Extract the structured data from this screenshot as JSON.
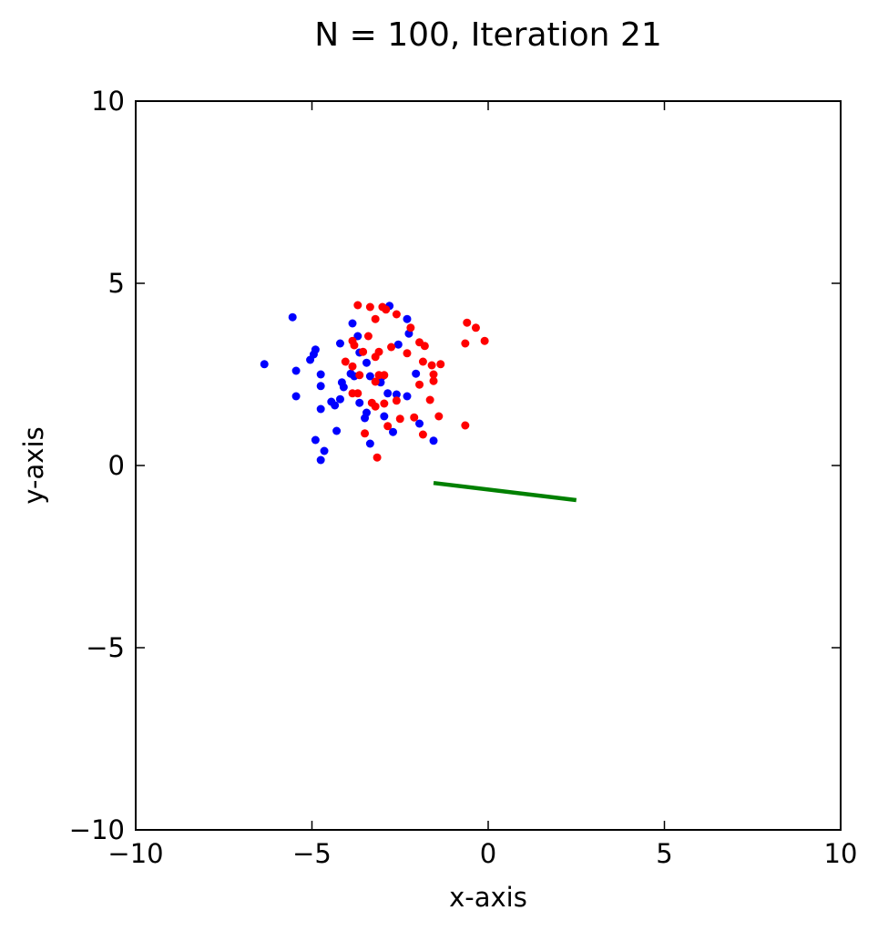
{
  "chart_data": {
    "type": "scatter",
    "title": "N = 100, Iteration 21",
    "xlabel": "x-axis",
    "ylabel": "y-axis",
    "xlim": [
      -10,
      10
    ],
    "ylim": [
      -10,
      10
    ],
    "xticks": [
      -10,
      -5,
      0,
      5,
      10
    ],
    "yticks": [
      -10,
      -5,
      0,
      5,
      10
    ],
    "xtick_labels": [
      "−10",
      "−5",
      "0",
      "5",
      "10"
    ],
    "ytick_labels": [
      "−10",
      "−5",
      "0",
      "5",
      "10"
    ],
    "grid": false,
    "series": [
      {
        "color": "#0000ff",
        "points": [
          [
            -5.55,
            4.07
          ],
          [
            -6.35,
            2.78
          ],
          [
            -5.45,
            2.6
          ],
          [
            -5.45,
            1.9
          ],
          [
            -5.05,
            2.9
          ],
          [
            -4.95,
            3.05
          ],
          [
            -4.9,
            3.18
          ],
          [
            -4.75,
            2.5
          ],
          [
            -4.75,
            2.18
          ],
          [
            -4.75,
            1.55
          ],
          [
            -4.9,
            0.7
          ],
          [
            -4.65,
            0.4
          ],
          [
            -4.75,
            0.15
          ],
          [
            -4.45,
            1.75
          ],
          [
            -4.35,
            1.65
          ],
          [
            -4.3,
            0.95
          ],
          [
            -4.2,
            1.82
          ],
          [
            -4.15,
            2.28
          ],
          [
            -4.1,
            2.15
          ],
          [
            -4.2,
            3.35
          ],
          [
            -3.9,
            2.52
          ],
          [
            -3.8,
            2.45
          ],
          [
            -3.85,
            3.9
          ],
          [
            -3.7,
            3.55
          ],
          [
            -3.65,
            3.1
          ],
          [
            -3.65,
            1.72
          ],
          [
            -3.5,
            1.3
          ],
          [
            -3.45,
            1.45
          ],
          [
            -3.45,
            2.82
          ],
          [
            -3.35,
            2.45
          ],
          [
            -3.35,
            0.6
          ],
          [
            -3.05,
            2.28
          ],
          [
            -3.0,
            2.45
          ],
          [
            -2.95,
            1.35
          ],
          [
            -2.85,
            1.98
          ],
          [
            -2.8,
            4.38
          ],
          [
            -2.7,
            0.92
          ],
          [
            -2.6,
            1.95
          ],
          [
            -2.55,
            3.32
          ],
          [
            -2.3,
            1.9
          ],
          [
            -2.3,
            4.02
          ],
          [
            -2.25,
            3.62
          ],
          [
            -2.05,
            2.52
          ],
          [
            -1.95,
            1.15
          ],
          [
            -1.55,
            0.68
          ]
        ]
      },
      {
        "color": "#ff0000",
        "points": [
          [
            -3.7,
            4.4
          ],
          [
            -3.35,
            4.35
          ],
          [
            -3.2,
            4.02
          ],
          [
            -3.0,
            4.35
          ],
          [
            -2.9,
            4.28
          ],
          [
            -2.6,
            4.15
          ],
          [
            -2.2,
            3.78
          ],
          [
            -3.85,
            3.42
          ],
          [
            -3.8,
            3.3
          ],
          [
            -3.55,
            3.12
          ],
          [
            -3.4,
            3.55
          ],
          [
            -3.2,
            2.98
          ],
          [
            -3.1,
            3.12
          ],
          [
            -2.75,
            3.25
          ],
          [
            -2.3,
            3.08
          ],
          [
            -1.95,
            3.38
          ],
          [
            -1.8,
            3.28
          ],
          [
            -4.05,
            2.85
          ],
          [
            -3.85,
            2.72
          ],
          [
            -3.65,
            2.48
          ],
          [
            -3.2,
            2.3
          ],
          [
            -3.1,
            2.48
          ],
          [
            -2.95,
            2.48
          ],
          [
            -1.85,
            2.85
          ],
          [
            -1.6,
            2.75
          ],
          [
            -1.55,
            2.5
          ],
          [
            -1.55,
            2.32
          ],
          [
            -1.35,
            2.78
          ],
          [
            -1.95,
            2.22
          ],
          [
            -3.85,
            1.98
          ],
          [
            -3.7,
            1.98
          ],
          [
            -3.3,
            1.72
          ],
          [
            -3.2,
            1.62
          ],
          [
            -2.95,
            1.7
          ],
          [
            -2.6,
            1.78
          ],
          [
            -1.65,
            1.8
          ],
          [
            -2.1,
            1.32
          ],
          [
            -2.5,
            1.28
          ],
          [
            -2.85,
            1.08
          ],
          [
            -3.5,
            0.88
          ],
          [
            -3.15,
            0.22
          ],
          [
            -1.85,
            0.85
          ],
          [
            -1.4,
            1.35
          ],
          [
            -0.6,
            3.92
          ],
          [
            -0.35,
            3.78
          ],
          [
            -0.1,
            3.42
          ],
          [
            -0.65,
            3.35
          ],
          [
            -0.65,
            1.1
          ]
        ]
      }
    ],
    "line": {
      "color": "#008000",
      "x": [
        -1.55,
        2.5
      ],
      "y": [
        -0.48,
        -0.95
      ]
    }
  }
}
